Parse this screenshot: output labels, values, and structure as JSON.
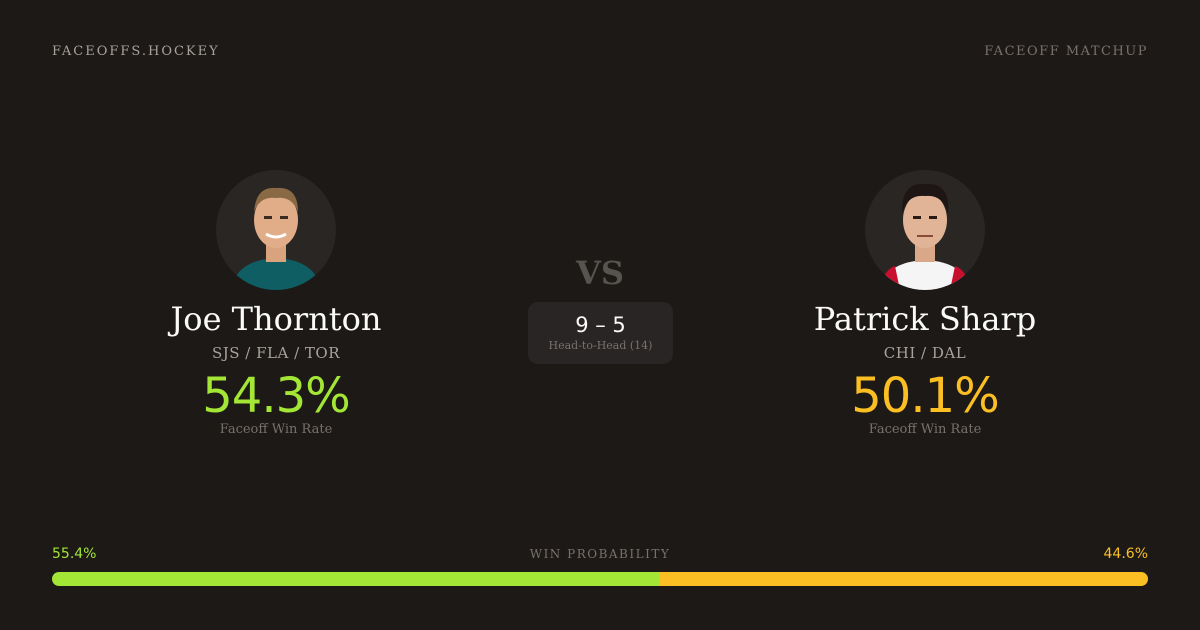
{
  "brand": "FACEOFFS.HOCKEY",
  "kicker": "FACEOFF MATCHUP",
  "vs": "VS",
  "players": [
    {
      "name": "Joe Thornton",
      "teams": "SJS / FLA / TOR",
      "rate": "54.3%",
      "rate_label": "Faceoff Win Rate",
      "color": "#a3e635"
    },
    {
      "name": "Patrick Sharp",
      "teams": "CHI / DAL",
      "rate": "50.1%",
      "rate_label": "Faceoff Win Rate",
      "color": "#fbbf24"
    }
  ],
  "head_to_head": {
    "score": "9 – 5",
    "label": "Head-to-Head (14)"
  },
  "win_probability": {
    "title": "WIN PROBABILITY",
    "left": "55.4%",
    "right": "44.6%",
    "left_value": 55.4
  }
}
